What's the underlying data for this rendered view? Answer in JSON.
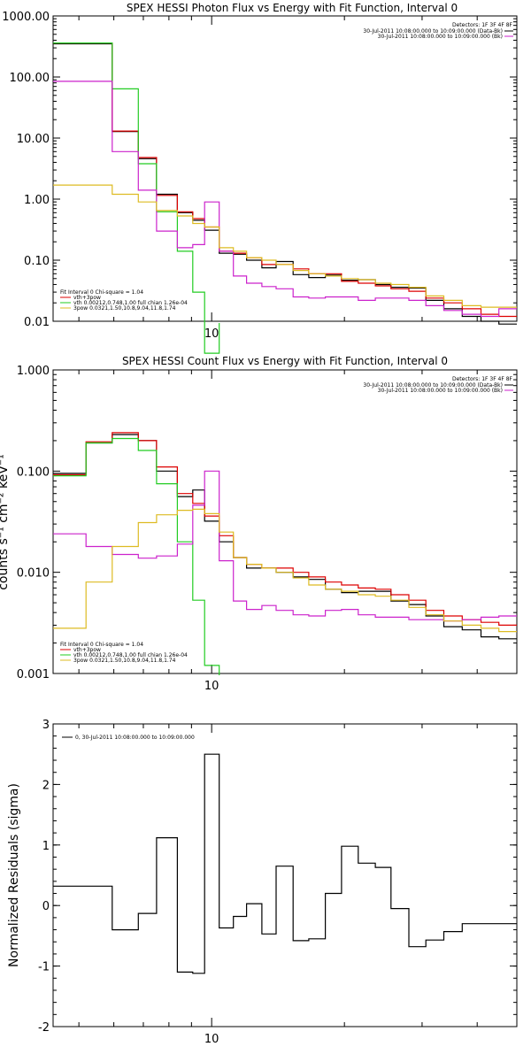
{
  "colors": {
    "black": "#000000",
    "red": "#dd0000",
    "green": "#22cc22",
    "magenta": "#cc22cc",
    "yellow": "#ddbb22"
  },
  "chart_data": [
    {
      "type": "line",
      "title": "SPEX HESSI Photon Flux vs Energy with Fit Function, Interval 0",
      "xlabel": "",
      "ylabel": "",
      "xscale": "log",
      "yscale": "log",
      "xlim": [
        4.37,
        49.2
      ],
      "ylim": [
        0.01,
        1000
      ],
      "yticks": [
        "1000.00",
        "100.00",
        "10.00",
        "1.00",
        "0.10",
        "0.01"
      ],
      "xticks": [
        "10"
      ],
      "grid": false,
      "detectors_label": "Detectors: 1F 3F 4F 8F",
      "time_legend": [
        {
          "text": "30-Jul-2011 10:08:00.000 to 10:09:00.000 (Data-Bk)",
          "color": "black"
        },
        {
          "text": "30-Jul-2011 10:08:00.000 to 10:09:00.000 (Bk)",
          "color": "magenta"
        }
      ],
      "fit_legend": [
        {
          "text": "Fit Interval 0   Chi-square = 1.04",
          "color": "black"
        },
        {
          "text": "vth+3pow",
          "color": "red"
        },
        {
          "text": "vth 0.00212,0.748,1.00  full chian 1.26e-04",
          "color": "green"
        },
        {
          "text": "3pow 0.0321,1.50,10.8,9.04,11.8,1.74",
          "color": "yellow"
        }
      ],
      "x_edges": [
        4.37,
        5.19,
        5.95,
        6.82,
        7.5,
        8.36,
        9.06,
        9.64,
        10.4,
        11.2,
        12.0,
        13.0,
        14.0,
        15.3,
        16.6,
        18.1,
        19.7,
        21.5,
        23.5,
        25.5,
        28.0,
        30.6,
        33.6,
        37.0,
        40.8,
        44.8,
        49.2
      ],
      "series": [
        {
          "color": "black",
          "values": [
            350,
            350,
            12.8,
            4.6,
            1.2,
            0.6,
            0.45,
            0.31,
            0.13,
            0.125,
            0.1,
            0.075,
            0.095,
            0.058,
            0.052,
            0.057,
            0.047,
            0.048,
            0.04,
            0.036,
            0.035,
            0.022,
            0.016,
            0.012,
            0.01,
            0.009
          ]
        },
        {
          "color": "red",
          "values": [
            360,
            360,
            13,
            4.8,
            1.15,
            0.62,
            0.48,
            0.35,
            0.14,
            0.13,
            0.11,
            0.085,
            0.085,
            0.072,
            0.06,
            0.06,
            0.045,
            0.042,
            0.038,
            0.034,
            0.031,
            0.024,
            0.02,
            0.016,
            0.013,
            0.012
          ]
        },
        {
          "color": "green",
          "values": [
            360,
            360,
            64,
            3.8,
            0.62,
            0.14,
            0.03,
            0.003
          ]
        },
        {
          "color": "magenta",
          "values": [
            85,
            85,
            6,
            1.4,
            0.3,
            0.16,
            0.18,
            0.9,
            0.14,
            0.055,
            0.042,
            0.037,
            0.034,
            0.025,
            0.024,
            0.025,
            0.025,
            0.022,
            0.024,
            0.024,
            0.022,
            0.018,
            0.015,
            0.013,
            0.012,
            0.016
          ]
        },
        {
          "color": "yellow",
          "values": [
            1.7,
            1.7,
            1.2,
            0.9,
            0.65,
            0.53,
            0.4,
            0.35,
            0.16,
            0.14,
            0.11,
            0.1,
            0.085,
            0.068,
            0.06,
            0.055,
            0.05,
            0.048,
            0.042,
            0.04,
            0.036,
            0.026,
            0.022,
            0.018,
            0.017,
            0.017
          ]
        }
      ]
    },
    {
      "type": "line",
      "title": "SPEX HESSI Count Flux vs Energy with Fit Function, Interval 0",
      "xlabel": "",
      "ylabel": "counts s⁻¹ cm⁻² keV⁻¹",
      "xscale": "log",
      "yscale": "log",
      "xlim": [
        4.37,
        49.2
      ],
      "ylim": [
        0.001,
        1.0
      ],
      "yticks": [
        "1.000",
        "0.100",
        "0.010",
        "0.001"
      ],
      "xticks": [
        "10"
      ],
      "grid": false,
      "detectors_label": "Detectors: 1F 3F 4F 8F",
      "time_legend": [
        {
          "text": "30-Jul-2011 10:08:00.000 to 10:09:00.000 (Data-Bk)",
          "color": "black"
        },
        {
          "text": "30-Jul-2011 10:08:00.000 to 10:09:00.000 (Bk)",
          "color": "magenta"
        }
      ],
      "fit_legend": [
        {
          "text": "Fit Interval 0   Chi-square = 1.04",
          "color": "black"
        },
        {
          "text": "vth+3pow",
          "color": "red"
        },
        {
          "text": "vth 0.00212,0.748,1.00  full chian 1.26e-04",
          "color": "green"
        },
        {
          "text": "3pow 0.0321,1.50,10.8,9.04,11.8,1.74",
          "color": "yellow"
        }
      ],
      "x_edges": [
        4.37,
        5.19,
        5.95,
        6.82,
        7.5,
        8.36,
        9.06,
        9.64,
        10.4,
        11.2,
        12.0,
        13.0,
        14.0,
        15.3,
        16.6,
        18.1,
        19.7,
        21.5,
        23.5,
        25.5,
        28.0,
        30.6,
        33.6,
        37.0,
        40.8,
        44.8,
        49.2
      ],
      "series": [
        {
          "color": "black",
          "values": [
            0.095,
            0.19,
            0.23,
            0.2,
            0.1,
            0.056,
            0.065,
            0.032,
            0.02,
            0.014,
            0.011,
            0.011,
            0.01,
            0.009,
            0.0085,
            0.0068,
            0.0063,
            0.0065,
            0.0065,
            0.0052,
            0.0048,
            0.0037,
            0.0029,
            0.0027,
            0.0023,
            0.0022
          ]
        },
        {
          "color": "red",
          "values": [
            0.092,
            0.195,
            0.24,
            0.2,
            0.11,
            0.06,
            0.048,
            0.036,
            0.023,
            0.014,
            0.012,
            0.011,
            0.011,
            0.01,
            0.009,
            0.008,
            0.0075,
            0.007,
            0.0068,
            0.006,
            0.0053,
            0.0042,
            0.0037,
            0.0034,
            0.0032,
            0.003
          ]
        },
        {
          "color": "green",
          "values": [
            0.09,
            0.19,
            0.21,
            0.16,
            0.075,
            0.02,
            0.0053,
            0.0012
          ]
        },
        {
          "color": "magenta",
          "values": [
            0.024,
            0.018,
            0.015,
            0.0138,
            0.0145,
            0.019,
            0.046,
            0.1,
            0.013,
            0.0052,
            0.0043,
            0.0047,
            0.0042,
            0.0038,
            0.0037,
            0.0042,
            0.0043,
            0.0038,
            0.0036,
            0.0036,
            0.0034,
            0.0034,
            0.0033,
            0.0034,
            0.0036,
            0.0037
          ]
        },
        {
          "color": "yellow",
          "values": [
            0.0028,
            0.008,
            0.018,
            0.031,
            0.037,
            0.041,
            0.042,
            0.038,
            0.025,
            0.014,
            0.012,
            0.011,
            0.01,
            0.0088,
            0.0075,
            0.0068,
            0.0065,
            0.006,
            0.0058,
            0.0053,
            0.0045,
            0.0038,
            0.0033,
            0.003,
            0.0028,
            0.0026
          ]
        }
      ]
    },
    {
      "type": "line",
      "title": "",
      "xlabel": "",
      "ylabel": "Normalized Residuals (sigma)",
      "xscale": "log",
      "yscale": "linear",
      "xlim": [
        4.37,
        49.2
      ],
      "ylim": [
        -2,
        3
      ],
      "yticks": [
        "3",
        "2",
        "1",
        "0",
        "-1",
        "-2"
      ],
      "xticks": [
        "10"
      ],
      "grid": false,
      "legend_line": "0, 30-Jul-2011 10:08:00.000 to 10:09:00.000",
      "x_edges": [
        4.37,
        5.19,
        5.95,
        6.82,
        7.5,
        8.36,
        9.06,
        9.64,
        10.4,
        11.2,
        12.0,
        13.0,
        14.0,
        15.3,
        16.6,
        18.1,
        19.7,
        21.5,
        23.5,
        25.5,
        28.0,
        30.6,
        33.6,
        37.0,
        40.8,
        44.8,
        49.2
      ],
      "series": [
        {
          "color": "black",
          "values": [
            0.32,
            0.32,
            -0.4,
            -0.13,
            1.12,
            -1.1,
            -1.12,
            2.5,
            -0.37,
            -0.18,
            0.03,
            -0.47,
            0.65,
            -0.58,
            -0.55,
            0.2,
            0.98,
            0.7,
            0.63,
            -0.05,
            -0.68,
            -0.57,
            -0.43,
            -0.3,
            -0.3,
            -0.3
          ]
        }
      ]
    }
  ]
}
